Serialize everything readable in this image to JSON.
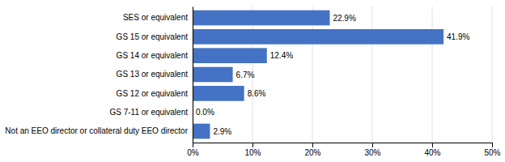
{
  "chart_data": {
    "type": "bar",
    "orientation": "horizontal",
    "categories": [
      "SES or equivalent",
      "GS 15 or equivalent",
      "GS 14 or equivalent",
      "GS 13 or equivalent",
      "GS 12 or equivalent",
      "GS 7-11 or equivalent",
      "Not an EEO director or collateral duty EEO director"
    ],
    "values": [
      22.9,
      41.9,
      12.4,
      6.7,
      8.6,
      0.0,
      2.9
    ],
    "value_labels": [
      "22.9%",
      "41.9%",
      "12.4%",
      "6.7%",
      "8.6%",
      "0.0%",
      "2.9%"
    ],
    "data_labels": true,
    "color": "#4472c4",
    "xlim": [
      0,
      50
    ],
    "xticks": [
      {
        "value": 0,
        "label": "0%"
      },
      {
        "value": 10,
        "label": "10%"
      },
      {
        "value": 20,
        "label": "20%"
      },
      {
        "value": 30,
        "label": "30%"
      },
      {
        "value": 40,
        "label": "40%"
      },
      {
        "value": 50,
        "label": "50%"
      }
    ],
    "grid": true
  }
}
